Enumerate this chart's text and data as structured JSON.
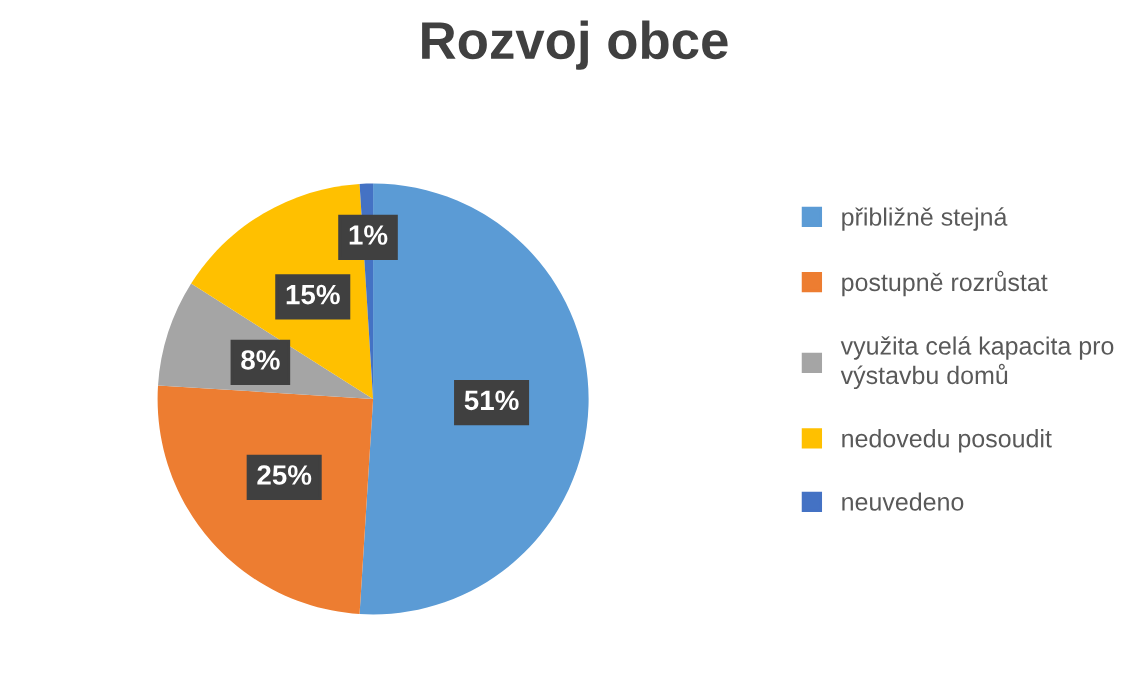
{
  "chart_data": {
    "type": "pie",
    "title": "Rozvoj obce",
    "categories": [
      "přibližně stejná",
      "postupně rozrůstat",
      "využita celá kapacita pro výstavbu domů",
      "nedovedu posoudit",
      "neuvedeno"
    ],
    "values": [
      51,
      25,
      8,
      15,
      1
    ],
    "value_labels": [
      "51%",
      "25%",
      "8%",
      "15%",
      "1%"
    ],
    "colors": [
      "#5b9bd5",
      "#ed7d31",
      "#a5a5a5",
      "#ffc000",
      "#4472c4"
    ],
    "legend": "right"
  }
}
